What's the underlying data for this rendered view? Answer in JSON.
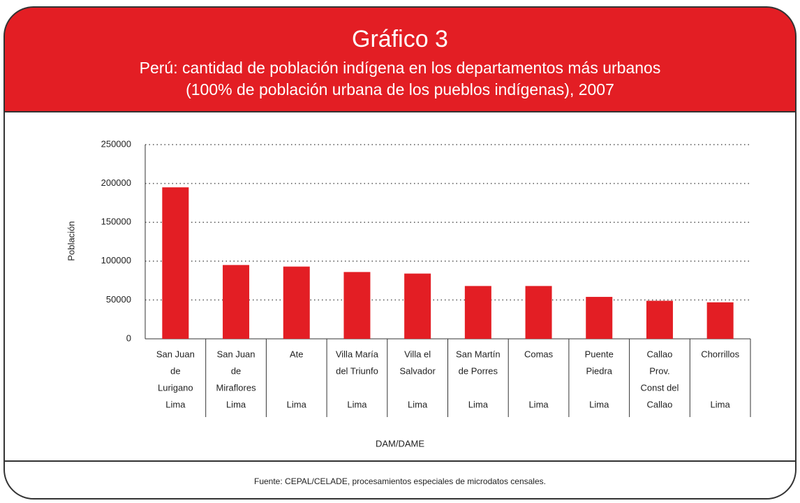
{
  "chart_data": {
    "type": "bar",
    "title": "Gráfico 3",
    "subtitle": [
      "Perú: cantidad de población indígena en los departamentos más urbanos",
      "(100% de población urbana de los pueblos indígenas), 2007"
    ],
    "y_label": "Población",
    "x_label": "DAM/DAME",
    "source": "Fuente: CEPAL/CELADE, procesamientos especiales de microdatos censales.",
    "categories": [
      [
        "San Juan",
        "de",
        "Lurigano",
        "Lima"
      ],
      [
        "San Juan",
        "de",
        "Miraflores",
        "Lima"
      ],
      [
        "Ate",
        "Lima"
      ],
      [
        "Villa María",
        "del Triunfo",
        "Lima"
      ],
      [
        "Villa el",
        "Salvador",
        "Lima"
      ],
      [
        "San Martín",
        "de Porres",
        "Lima"
      ],
      [
        "Comas",
        "Lima"
      ],
      [
        "Puente",
        "Piedra",
        "Lima"
      ],
      [
        "Callao",
        "Prov.",
        "Const del",
        "Callao"
      ],
      [
        "Chorrillos",
        "Lima"
      ]
    ],
    "values": [
      195000,
      95000,
      93000,
      86000,
      84000,
      68000,
      68000,
      54000,
      49000,
      47000
    ],
    "color": "#e31e24",
    "ylim": [
      0,
      250000
    ],
    "yticks": [
      0,
      50000,
      100000,
      150000,
      200000,
      250000
    ],
    "grid": true
  }
}
